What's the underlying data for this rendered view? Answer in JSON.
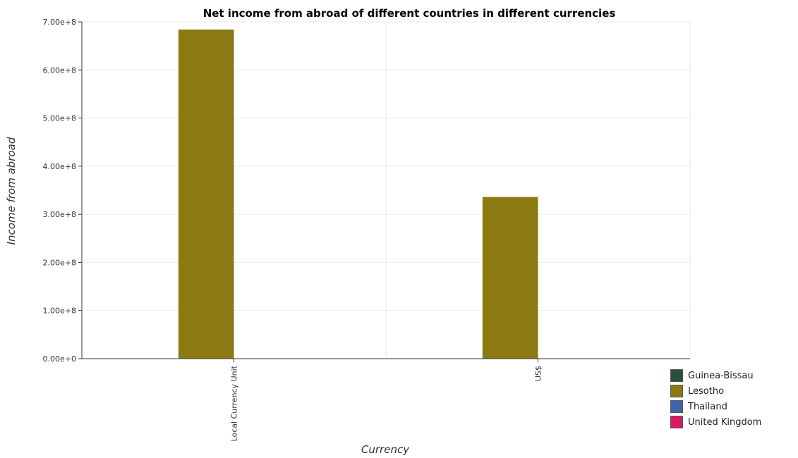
{
  "chart_data": {
    "type": "bar",
    "title": "Net income from abroad of different countries in different currencies",
    "xlabel": "Currency",
    "ylabel": "Income from abroad",
    "categories": [
      "Local Currency Unit",
      "US$"
    ],
    "series": [
      {
        "name": "Guinea-Bissau",
        "color": "#2d4e3c",
        "values": [
          0,
          0
        ]
      },
      {
        "name": "Lesotho",
        "color": "#8b7a12",
        "values": [
          684000000,
          336000000
        ]
      },
      {
        "name": "Thailand",
        "color": "#3f63ad",
        "values": [
          0,
          0
        ]
      },
      {
        "name": "United Kingdom",
        "color": "#d81b60",
        "values": [
          0,
          0
        ]
      }
    ],
    "ylim": [
      0,
      700000000
    ],
    "yticks": [
      0,
      100000000,
      200000000,
      300000000,
      400000000,
      500000000,
      600000000,
      700000000
    ],
    "ytick_labels": [
      "0.00e+0",
      "1.00e+8",
      "2.00e+8",
      "3.00e+8",
      "4.00e+8",
      "5.00e+8",
      "6.00e+8",
      "7.00e+8"
    ],
    "grid": true,
    "legend_position": "bottom-right"
  }
}
